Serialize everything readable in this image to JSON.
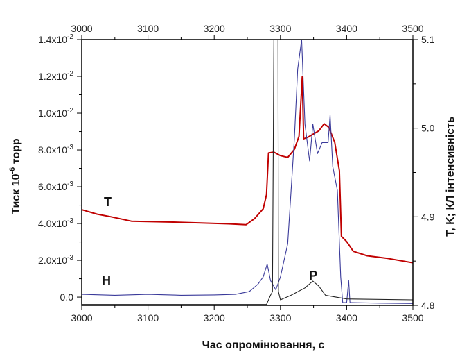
{
  "chart_data": {
    "type": "line",
    "xlabel": "Час опромінювання, с",
    "ylabel_left": "Тиск 10",
    "ylabel_left_sup": "-6",
    "ylabel_left_suffix": " торр",
    "ylabel_right": "T, K; КЛ інтенсивність",
    "xlim": [
      3000,
      3500
    ],
    "ylim_left": [
      -0.00045,
      0.014
    ],
    "ylim_right": [
      4.8,
      5.1
    ],
    "x_ticks": [
      "3000",
      "3100",
      "3200",
      "3300",
      "3400",
      "3500"
    ],
    "left_ticks": [
      {
        "value": 0,
        "mant": "0.0",
        "exp": ""
      },
      {
        "value": 0.002,
        "mant": "2.0x10",
        "exp": "-3"
      },
      {
        "value": 0.004,
        "mant": "4.0x10",
        "exp": "-3"
      },
      {
        "value": 0.006,
        "mant": "6.0x10",
        "exp": "-3"
      },
      {
        "value": 0.008,
        "mant": "8.0x10",
        "exp": "-3"
      },
      {
        "value": 0.01,
        "mant": "1.0x10",
        "exp": "-2"
      },
      {
        "value": 0.012,
        "mant": "1.2x10",
        "exp": "-2"
      },
      {
        "value": 0.014,
        "mant": "1.4x10",
        "exp": "-2"
      }
    ],
    "right_ticks": [
      "4.8",
      "4.9",
      "5.0",
      "5.1"
    ],
    "grid": false,
    "series": [
      {
        "name": "T",
        "axis": "right",
        "color": "#c00000",
        "x": [
          3000,
          3023,
          3044,
          3075,
          3138,
          3222,
          3248,
          3261,
          3274,
          3279,
          3282,
          3290,
          3300,
          3311,
          3321,
          3328,
          3333,
          3335,
          3342,
          3358,
          3366,
          3373,
          3382,
          3389,
          3392,
          3400,
          3410,
          3431,
          3462,
          3500
        ],
        "y": [
          4.908,
          4.903,
          4.9,
          4.895,
          4.894,
          4.892,
          4.891,
          4.898,
          4.909,
          4.925,
          4.972,
          4.973,
          4.969,
          4.967,
          4.976,
          4.991,
          5.058,
          4.988,
          4.99,
          4.997,
          5.005,
          5.001,
          4.984,
          4.952,
          4.878,
          4.872,
          4.861,
          4.856,
          4.853,
          4.848
        ]
      },
      {
        "name": "H",
        "axis": "left",
        "color": "#3a3a9a",
        "x": [
          3000,
          3050,
          3100,
          3150,
          3200,
          3232,
          3253,
          3266,
          3274,
          3280,
          3285,
          3293,
          3300,
          3311,
          3321,
          3326,
          3332,
          3337,
          3344,
          3349,
          3356,
          3363,
          3372,
          3375,
          3379,
          3386,
          3391,
          3394,
          3400,
          3403,
          3405,
          3450,
          3500
        ],
        "y": [
          0.00015,
          0.0001,
          0.00015,
          0.0001,
          0.00012,
          0.00015,
          0.0003,
          0.0007,
          0.0011,
          0.0018,
          0.0009,
          0.0004,
          0.0011,
          0.0029,
          0.0086,
          0.0124,
          0.014,
          0.0094,
          0.0074,
          0.0094,
          0.0078,
          0.0084,
          0.0084,
          0.0099,
          0.0071,
          0.0058,
          0.0011,
          -0.0003,
          -0.0003,
          0.0009,
          -0.0003,
          -0.00033,
          -0.00035
        ]
      },
      {
        "name": "P",
        "axis": "left",
        "color": "#222222",
        "x": [
          3000,
          3279,
          3285,
          3288,
          3291,
          3296,
          3297,
          3300,
          3316,
          3337,
          3349,
          3358,
          3368,
          3400,
          3500
        ],
        "y": [
          -0.0004,
          -0.0004,
          0.0001,
          0.0003,
          0.02,
          0.02,
          0.0003,
          -0.00015,
          0.0001,
          0.0005,
          0.00087,
          0.0006,
          0.0001,
          -0.0001,
          -0.00015
        ]
      }
    ],
    "annotations": [
      "T",
      "H",
      "P"
    ]
  }
}
